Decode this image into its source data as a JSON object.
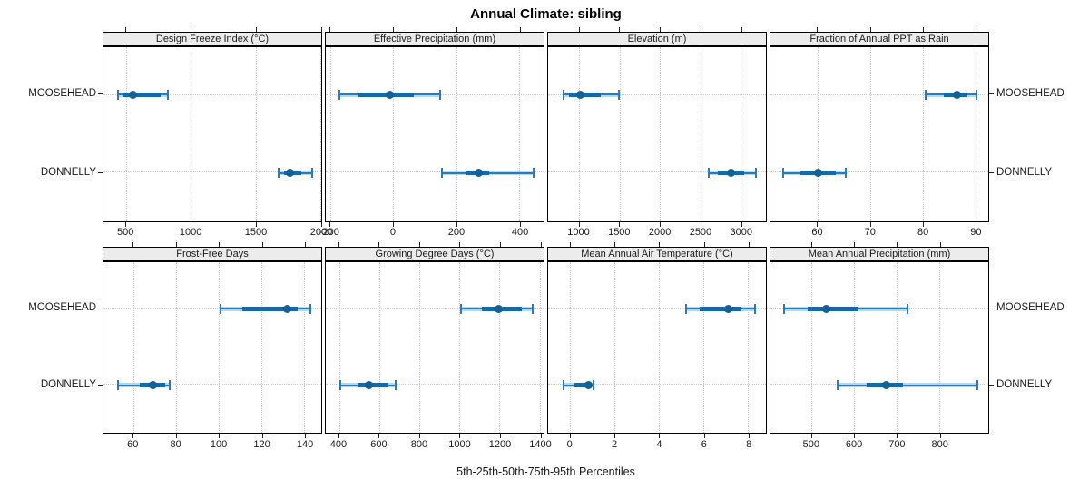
{
  "title": "Annual Climate: sibling",
  "caption": "5th-25th-50th-75th-95th Percentiles",
  "sites": [
    "MOOSEHEAD",
    "DONNELLY"
  ],
  "colors": {
    "whisker": "#2b7bb9",
    "box": "#1668a7",
    "dot": "#135f96",
    "band": "#b9d6ea",
    "grid": "#c9c9c9",
    "strip_bg": "#ececec",
    "border": "#000000",
    "text": "#1a1a1a"
  },
  "chart_data": {
    "type": "dotplot-percentiles",
    "grid": {
      "rows": 2,
      "cols": 4
    },
    "percentile_labels": [
      "5th",
      "25th",
      "50th",
      "75th",
      "95th"
    ],
    "categories": [
      "MOOSEHEAD",
      "DONNELLY"
    ],
    "panels": [
      {
        "slug": "design-freeze-index",
        "title": "Design Freeze Index (°C)",
        "row": 0,
        "col": 0,
        "ticks": [
          500,
          1000,
          1500,
          2000
        ],
        "domain": [
          325,
          2007
        ],
        "series": [
          {
            "site": "MOOSEHEAD",
            "values": [
              440,
              480,
              550,
              770,
              820
            ]
          },
          {
            "site": "DONNELLY",
            "values": [
              1680,
              1720,
              1765,
              1855,
              1940
            ]
          }
        ]
      },
      {
        "slug": "effective-precipitation",
        "title": "Effective Precipitation (mm)",
        "row": 0,
        "col": 1,
        "ticks": [
          -200,
          0,
          200,
          400
        ],
        "domain": [
          -214,
          477
        ],
        "series": [
          {
            "site": "MOOSEHEAD",
            "values": [
              -170,
              -110,
              -10,
              65,
              150
            ]
          },
          {
            "site": "DONNELLY",
            "values": [
              155,
              230,
              270,
              305,
              445
            ]
          }
        ]
      },
      {
        "slug": "elevation",
        "title": "Elevation (m)",
        "row": 0,
        "col": 2,
        "ticks": [
          1000,
          1500,
          2000,
          2500,
          3000
        ],
        "domain": [
          615,
          3315
        ],
        "series": [
          {
            "site": "MOOSEHEAD",
            "values": [
              810,
              875,
              1015,
              1265,
              1490
            ]
          },
          {
            "site": "DONNELLY",
            "values": [
              2610,
              2720,
              2880,
              3040,
              3190
            ]
          }
        ]
      },
      {
        "slug": "fraction-annual-ppt-as-rain",
        "title": "Fraction of Annual PPT as Rain",
        "row": 0,
        "col": 3,
        "ticks": [
          60,
          70,
          80,
          90
        ],
        "domain": [
          51,
          92.5
        ],
        "series": [
          {
            "site": "MOOSEHEAD",
            "values": [
              80.5,
              84,
              86.5,
              88.5,
              90.3
            ]
          },
          {
            "site": "DONNELLY",
            "values": [
              53.5,
              56.5,
              60,
              63.5,
              65.3
            ]
          }
        ]
      },
      {
        "slug": "frost-free-days",
        "title": "Frost-Free Days",
        "row": 1,
        "col": 0,
        "ticks": [
          60,
          80,
          100,
          120,
          140
        ],
        "domain": [
          46,
          148
        ],
        "series": [
          {
            "site": "MOOSEHEAD",
            "values": [
              101,
              111,
              132,
              137,
              143
            ]
          },
          {
            "site": "DONNELLY",
            "values": [
              53,
              63,
              69,
              75,
              77
            ]
          }
        ]
      },
      {
        "slug": "growing-degree-days",
        "title": "Growing Degree Days (°C)",
        "row": 1,
        "col": 1,
        "ticks": [
          400,
          600,
          800,
          1000,
          1200,
          1400
        ],
        "domain": [
          333,
          1420
        ],
        "series": [
          {
            "site": "MOOSEHEAD",
            "values": [
              1010,
              1110,
              1195,
              1310,
              1365
            ]
          },
          {
            "site": "DONNELLY",
            "values": [
              405,
              490,
              550,
              645,
              680
            ]
          }
        ]
      },
      {
        "slug": "mean-annual-air-temperature",
        "title": "Mean Annual Air Temperature (°C)",
        "row": 1,
        "col": 2,
        "ticks": [
          0,
          2,
          4,
          6,
          8
        ],
        "domain": [
          -1.0,
          8.8
        ],
        "series": [
          {
            "site": "MOOSEHEAD",
            "values": [
              5.2,
              5.8,
              7.1,
              7.7,
              8.3
            ]
          },
          {
            "site": "DONNELLY",
            "values": [
              -0.3,
              0.2,
              0.8,
              0.9,
              1.05
            ]
          }
        ]
      },
      {
        "slug": "mean-annual-precipitation",
        "title": "Mean Annual Precipitation (mm)",
        "row": 1,
        "col": 3,
        "ticks": [
          500,
          600,
          700,
          800
        ],
        "domain": [
          403,
          915
        ],
        "series": [
          {
            "site": "MOOSEHEAD",
            "values": [
              435,
              490,
              535,
              610,
              725
            ]
          },
          {
            "site": "DONNELLY",
            "values": [
              560,
              630,
              675,
              715,
              890
            ]
          }
        ]
      }
    ]
  }
}
